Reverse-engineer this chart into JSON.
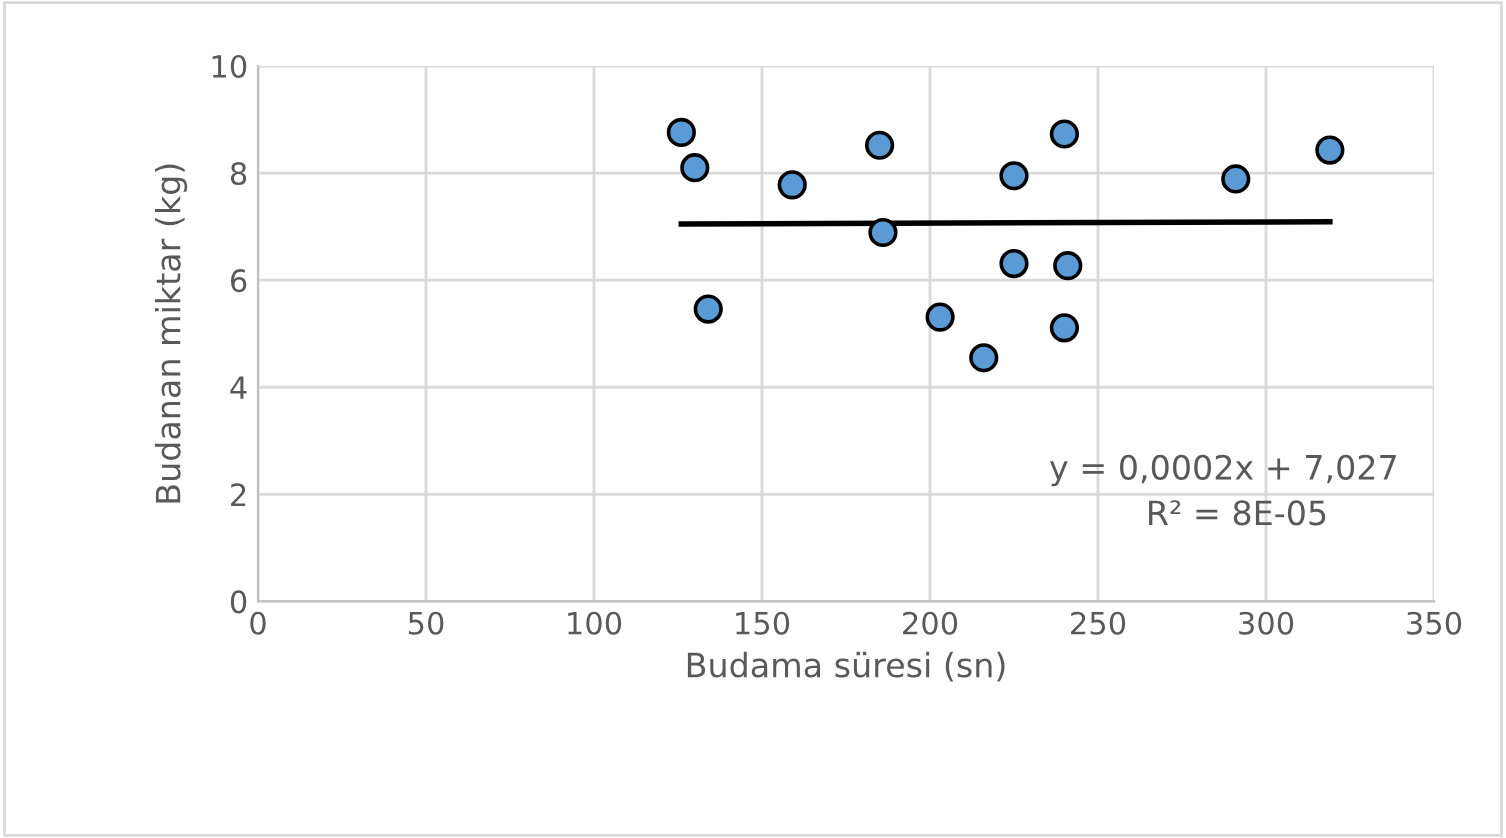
{
  "chart_data": {
    "type": "scatter",
    "xlabel": "Budama süresi (sn)",
    "ylabel": "Budanan miktar (kg)",
    "xlim": [
      0,
      350
    ],
    "xticks": [
      0,
      50,
      100,
      150,
      200,
      250,
      300,
      350
    ],
    "ylim": [
      0,
      10
    ],
    "yticks": [
      0,
      2,
      4,
      6,
      8,
      10
    ],
    "grid": true,
    "series": [
      {
        "marker": "circle",
        "color": "#5b9bd5",
        "x": [
          126,
          130,
          134,
          159,
          185,
          186,
          225,
          240,
          225,
          241,
          203,
          216,
          240,
          291,
          319
        ],
        "values": [
          8.76,
          8.1,
          5.46,
          7.78,
          8.52,
          6.89,
          7.95,
          8.73,
          6.31,
          6.27,
          5.31,
          4.55,
          5.11,
          7.89,
          8.43
        ]
      },
      {
        "type": "line",
        "color": "#000000",
        "x": [
          126,
          319
        ],
        "values": [
          7.05,
          7.09
        ]
      }
    ],
    "annotations": [
      "y = 0,0002x + 7,027",
      "R² = 8E-05"
    ]
  }
}
